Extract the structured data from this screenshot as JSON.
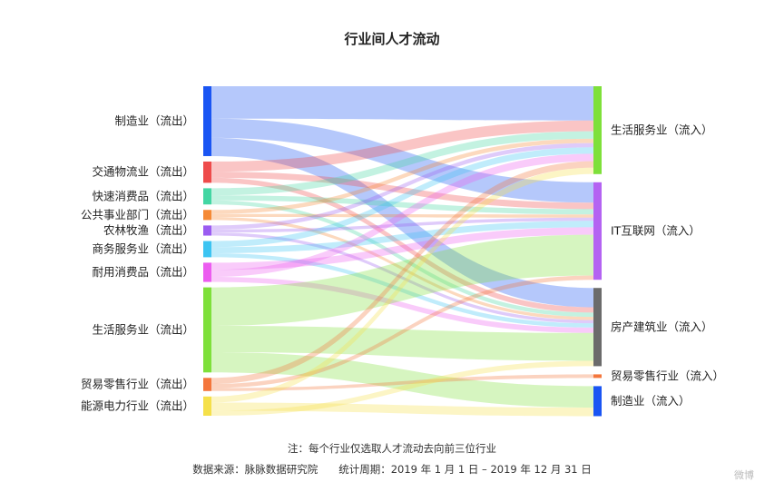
{
  "chart_data": {
    "type": "sankey",
    "title": "行业间人才流动",
    "sources": [
      {
        "id": "mfg",
        "label": "制造业（流出）",
        "color": "#1a55f3"
      },
      {
        "id": "logi",
        "label": "交通物流业（流出）",
        "color": "#ee4b4b"
      },
      {
        "id": "fmcg",
        "label": "快速消费品（流出）",
        "color": "#43d6a3"
      },
      {
        "id": "public",
        "label": "公共事业部门（流出）",
        "color": "#f58a36"
      },
      {
        "id": "agri",
        "label": "农林牧渔（流出）",
        "color": "#9b5cf1"
      },
      {
        "id": "biz",
        "label": "商务服务业（流出）",
        "color": "#3cc4f2"
      },
      {
        "id": "durable",
        "label": "耐用消费品（流出）",
        "color": "#ec5cf0"
      },
      {
        "id": "life",
        "label": "生活服务业（流出）",
        "color": "#7ee03a"
      },
      {
        "id": "trade",
        "label": "贸易零售行业（流出）",
        "color": "#f4763c"
      },
      {
        "id": "energy",
        "label": "能源电力行业（流出）",
        "color": "#f5e04a"
      }
    ],
    "targets": [
      {
        "id": "life_in",
        "label": "生活服务业（流入）",
        "color": "#7ee03a"
      },
      {
        "id": "it_in",
        "label": "IT互联网（流入）",
        "color": "#b463f2"
      },
      {
        "id": "estate_in",
        "label": "房产建筑业（流入）",
        "color": "#6b6b6b"
      },
      {
        "id": "trade_in",
        "label": "贸易零售行业（流入）",
        "color": "#f4763c"
      },
      {
        "id": "mfg_in",
        "label": "制造业（流入）",
        "color": "#1a55f3"
      }
    ],
    "links": [
      {
        "source": "mfg",
        "target": "life_in",
        "value": 32
      },
      {
        "source": "mfg",
        "target": "it_in",
        "value": 19
      },
      {
        "source": "mfg",
        "target": "estate_in",
        "value": 18
      },
      {
        "source": "logi",
        "target": "life_in",
        "value": 10
      },
      {
        "source": "logi",
        "target": "it_in",
        "value": 6
      },
      {
        "source": "logi",
        "target": "estate_in",
        "value": 5
      },
      {
        "source": "fmcg",
        "target": "life_in",
        "value": 7
      },
      {
        "source": "fmcg",
        "target": "it_in",
        "value": 5
      },
      {
        "source": "fmcg",
        "target": "estate_in",
        "value": 4
      },
      {
        "source": "public",
        "target": "life_in",
        "value": 4
      },
      {
        "source": "public",
        "target": "it_in",
        "value": 3
      },
      {
        "source": "public",
        "target": "estate_in",
        "value": 3
      },
      {
        "source": "agri",
        "target": "life_in",
        "value": 4
      },
      {
        "source": "agri",
        "target": "it_in",
        "value": 3
      },
      {
        "source": "agri",
        "target": "estate_in",
        "value": 3
      },
      {
        "source": "biz",
        "target": "life_in",
        "value": 6
      },
      {
        "source": "biz",
        "target": "it_in",
        "value": 6
      },
      {
        "source": "biz",
        "target": "estate_in",
        "value": 4
      },
      {
        "source": "durable",
        "target": "it_in",
        "value": 7
      },
      {
        "source": "durable",
        "target": "life_in",
        "value": 7
      },
      {
        "source": "durable",
        "target": "estate_in",
        "value": 5
      },
      {
        "source": "life",
        "target": "it_in",
        "value": 38
      },
      {
        "source": "life",
        "target": "estate_in",
        "value": 26
      },
      {
        "source": "life",
        "target": "mfg_in",
        "value": 20
      },
      {
        "source": "trade",
        "target": "life_in",
        "value": 6
      },
      {
        "source": "trade",
        "target": "it_in",
        "value": 4
      },
      {
        "source": "trade",
        "target": "trade_in",
        "value": 3
      },
      {
        "source": "energy",
        "target": "life_in",
        "value": 6
      },
      {
        "source": "energy",
        "target": "mfg_in",
        "value": 8
      },
      {
        "source": "energy",
        "target": "estate_in",
        "value": 5
      }
    ]
  },
  "footer": {
    "note": "注：每个行业仅选取人才流动去向前三位行业",
    "source": "数据来源：脉脉数据研究院　　统计周期：2019 年 1 月 1 日 – 2019 年 12 月 31 日"
  },
  "watermark": "微博"
}
